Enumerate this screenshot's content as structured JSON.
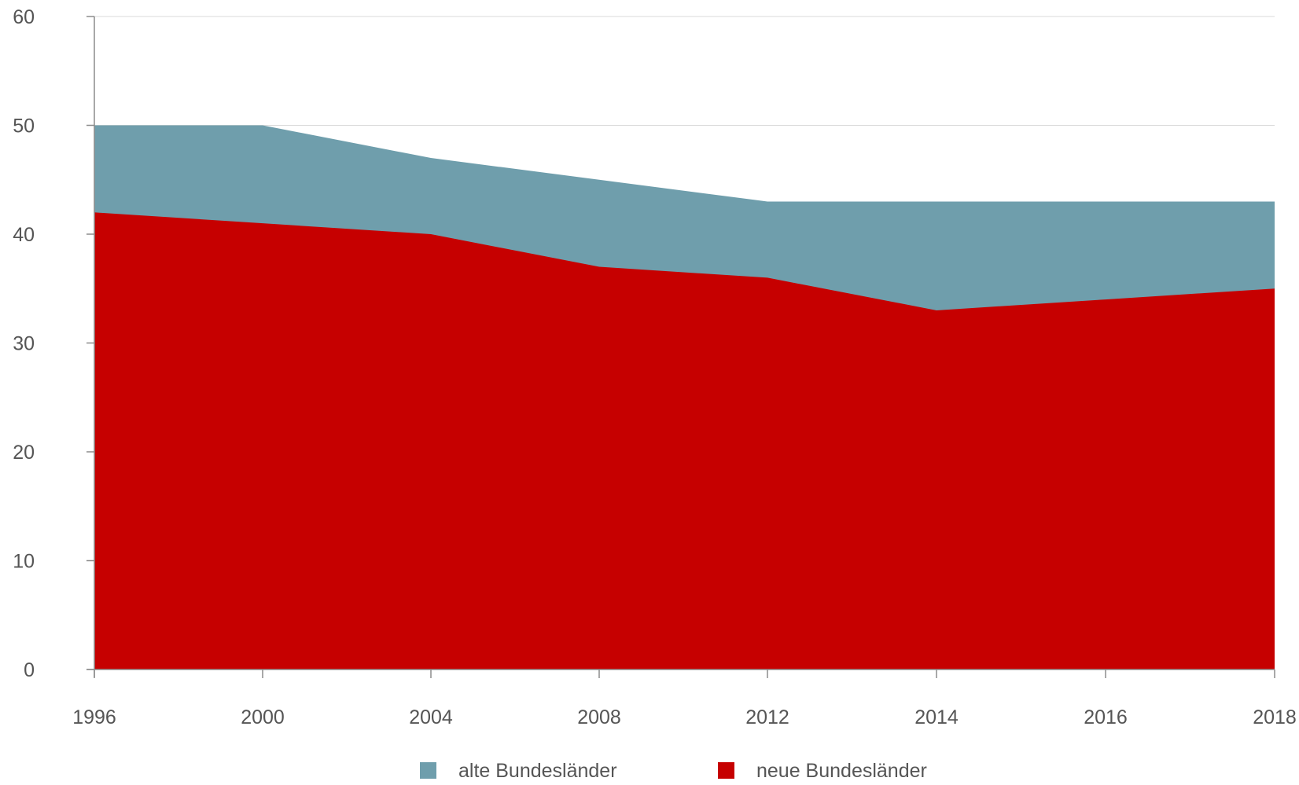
{
  "chart_data": {
    "type": "area",
    "title": "",
    "xlabel": "",
    "ylabel": "",
    "categories": [
      "1996",
      "2000",
      "2004",
      "2008",
      "2012",
      "2014",
      "2016",
      "2018"
    ],
    "ylim": [
      0,
      60
    ],
    "yticks": [
      0,
      10,
      20,
      30,
      40,
      50,
      60
    ],
    "grid": true,
    "legend_position": "bottom-center",
    "series": [
      {
        "name": "alte Bundesländer",
        "values": [
          50,
          50,
          47,
          45,
          43,
          43,
          43,
          43
        ],
        "color": "#6f9eac"
      },
      {
        "name": "neue Bundesländer",
        "values": [
          42,
          41,
          40,
          37,
          36,
          33,
          34,
          35
        ],
        "color": "#c60000"
      }
    ]
  }
}
